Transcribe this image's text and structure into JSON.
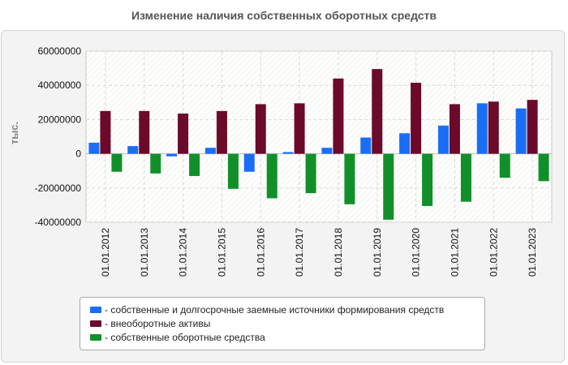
{
  "chart_data": {
    "type": "bar",
    "title": "Изменение наличия собственных оборотных средств",
    "ylabel": "тыс.",
    "xlabel": "",
    "ylim": [
      -40000000,
      60000000
    ],
    "yticks": [
      60000000,
      40000000,
      20000000,
      0,
      -20000000,
      -40000000
    ],
    "grid": true,
    "legend_position": "bottom",
    "categories": [
      "01.01.2012",
      "01.01.2013",
      "01.01.2014",
      "01.01.2015",
      "01.01.2016",
      "01.01.2017",
      "01.01.2018",
      "01.01.2019",
      "01.01.2020",
      "01.01.2021",
      "01.01.2022",
      "01.01.2023"
    ],
    "series": [
      {
        "name": "собственные и долгосрочные заемные источники формирования средств",
        "color": "#1a6ef5",
        "values": [
          6500000,
          4500000,
          -1500000,
          3500000,
          -10500000,
          1000000,
          3500000,
          9500000,
          12000000,
          16500000,
          29500000,
          26500000
        ]
      },
      {
        "name": "внеоборотные активы",
        "color": "#6b0a2a",
        "values": [
          25000000,
          25000000,
          23500000,
          25000000,
          29000000,
          29500000,
          44000000,
          49500000,
          41500000,
          29000000,
          30500000,
          31500000
        ]
      },
      {
        "name": "собственные оборотные средства",
        "color": "#11902a",
        "values": [
          -10500000,
          -11500000,
          -13000000,
          -20500000,
          -26000000,
          -23000000,
          -29500000,
          -38500000,
          -30500000,
          -28000000,
          -14000000,
          -16000000
        ]
      }
    ]
  }
}
